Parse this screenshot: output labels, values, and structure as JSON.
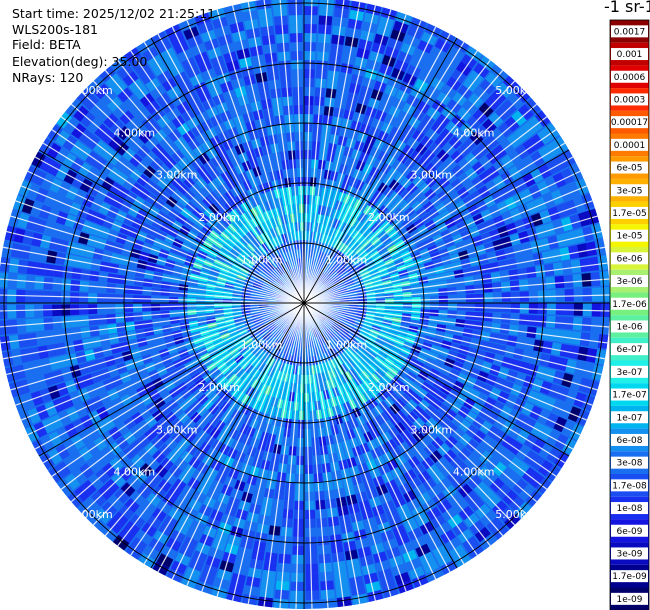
{
  "header": {
    "start_time": "Start time: 2025/12/02 21:25:11",
    "instrument": "WLS200s-181",
    "field": "Field: BETA",
    "elevation": "Elevation(deg): 35.00",
    "nrays": "NRays: 120"
  },
  "colorbar": {
    "title": "-1 sr-1",
    "ticks": [
      "0.0017",
      "0.001",
      "0.0006",
      "0.0003",
      "0.00017",
      "0.0001",
      "6e-05",
      "3e-05",
      "1.7e-05",
      "1e-05",
      "6e-06",
      "3e-06",
      "1.7e-06",
      "1e-06",
      "6e-07",
      "3e-07",
      "1.7e-07",
      "1e-07",
      "6e-08",
      "3e-08",
      "1.7e-08",
      "1e-08",
      "6e-09",
      "3e-09",
      "1.7e-09",
      "1e-09"
    ],
    "colors": [
      "#8b0000",
      "#c00000",
      "#e00000",
      "#ff2a00",
      "#ff5a00",
      "#ff7a00",
      "#ff9a00",
      "#ffb000",
      "#ffd000",
      "#f5f500",
      "#d8f53a",
      "#a8f070",
      "#78f080",
      "#5cf0a0",
      "#40f0c8",
      "#20f0e8",
      "#00d8f0",
      "#00b4f0",
      "#1490f0",
      "#1a6ef0",
      "#1a4ef0",
      "#1a30f0",
      "#1414e0",
      "#0a0ac0",
      "#000090",
      "#00006a"
    ]
  },
  "chart_data": {
    "type": "heatmap",
    "title": "",
    "field": "BETA",
    "elevation_deg": 35.0,
    "nrays": 120,
    "range_rings_km": [
      1,
      2,
      3,
      4,
      5
    ],
    "ring_labels": [
      "1.00km",
      "2.00km",
      "3.00km",
      "4.00km",
      "5.00km"
    ],
    "azimuth_spokes_deg": [
      0,
      30,
      60,
      90,
      120,
      150,
      180,
      210,
      240,
      270,
      300,
      330
    ],
    "max_range_km": 5.1,
    "scale": "log",
    "value_range": [
      1e-09,
      0.0017
    ],
    "typical_background": 3e-08,
    "near_field_ring_km": [
      1.0,
      2.0
    ],
    "near_field_value": 1.7e-07
  }
}
